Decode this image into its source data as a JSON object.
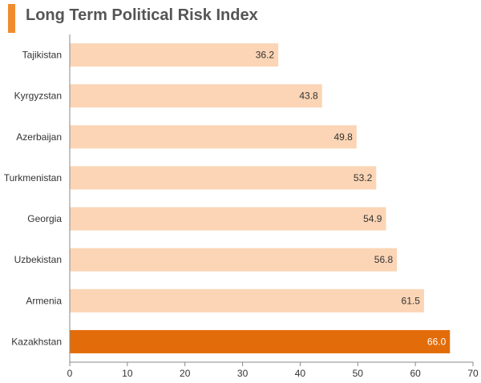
{
  "chart_data": {
    "type": "bar",
    "orientation": "horizontal",
    "title": "Long Term Political Risk Index",
    "categories": [
      "Tajikistan",
      "Kyrgyzstan",
      "Azerbaijan",
      "Turkmenistan",
      "Georgia",
      "Uzbekistan",
      "Armenia",
      "Kazakhstan"
    ],
    "values": [
      36.2,
      43.8,
      49.8,
      53.2,
      54.9,
      56.8,
      61.5,
      66.0
    ],
    "value_labels": [
      "36.2",
      "43.8",
      "49.8",
      "53.2",
      "54.9",
      "56.8",
      "61.5",
      "66.0"
    ],
    "xlim": [
      0,
      70
    ],
    "x_ticks": [
      "0",
      "10",
      "20",
      "30",
      "40",
      "50",
      "60",
      "70"
    ],
    "grid": false,
    "highlight_category": "Kazakhstan",
    "colors": {
      "bar": "#fbd5b5",
      "highlight": "#e36c0a",
      "title_accent": "#f08c2e",
      "axis": "#888888"
    }
  }
}
